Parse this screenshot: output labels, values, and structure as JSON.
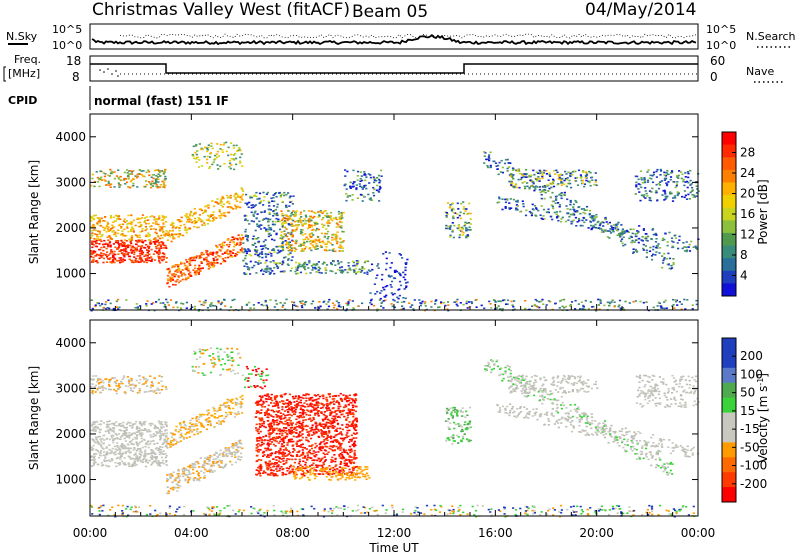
{
  "header": {
    "station": "Christmas Valley West (fitACF)",
    "beam": "Beam 05",
    "date": "04/May/2014"
  },
  "noise_panel": {
    "left_label": "N.Sky",
    "right_label": "N.Search",
    "left_ticks": [
      "10^5",
      "10^0"
    ],
    "right_ticks": [
      "10^5",
      "10^0"
    ]
  },
  "freq_panel": {
    "left_label_1": "Freq.",
    "left_label_2": "[MHz]",
    "right_label": "Nave",
    "left_ticks": [
      "18",
      "8"
    ],
    "right_ticks": [
      "60",
      "0"
    ]
  },
  "cpid": {
    "label": "CPID",
    "text": "normal (fast) 151 IF"
  },
  "colors": {
    "red": "#ff0000",
    "orange_red": "#ff6a00",
    "orange": "#ff9b00",
    "gold": "#f5c518",
    "yellowgreen": "#aacd2e",
    "green": "#3d8f3d",
    "teal": "#3a8c7a",
    "blue": "#1f3fbf",
    "navy": "#1010d8",
    "gray": "#c8c8c0",
    "lime": "#3ad43a"
  },
  "chart_data": [
    {
      "type": "heatmap",
      "panel": "power",
      "ylabel": "Slant Range [km]",
      "yticks": [
        1000,
        2000,
        3000,
        4000
      ],
      "ylim": [
        200,
        4500
      ],
      "xlim_hours": [
        0,
        24
      ],
      "colorbar_label": "Power [dB]",
      "colorbar_ticks": [
        "28",
        "24",
        "20",
        "16",
        "12",
        "8",
        "4"
      ],
      "colorbar_range": [
        0,
        30
      ]
    },
    {
      "type": "heatmap",
      "panel": "velocity",
      "ylabel": "Slant Range [km]",
      "yticks": [
        1000,
        2000,
        3000,
        4000
      ],
      "ylim": [
        200,
        4500
      ],
      "xlim_hours": [
        0,
        24
      ],
      "colorbar_label": "Velocity [m s",
      "colorbar_label_sup": "-1",
      "colorbar_label_end": "]",
      "colorbar_ticks": [
        "200",
        "100",
        "50",
        "15",
        "-15",
        "-50",
        "-100",
        "-200"
      ]
    }
  ],
  "time_axis": {
    "xlabel": "Time UT",
    "ticks": [
      "00:00",
      "04:00",
      "08:00",
      "12:00",
      "16:00",
      "20:00",
      "00:00"
    ]
  }
}
